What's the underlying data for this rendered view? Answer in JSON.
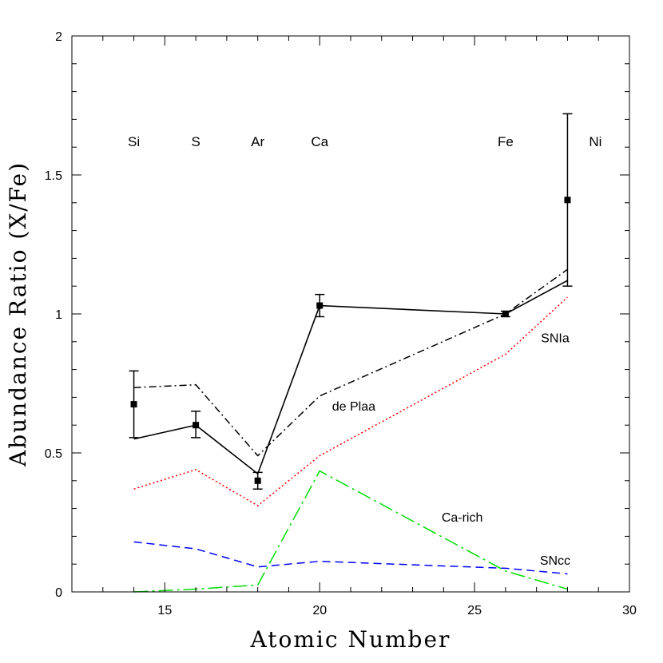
{
  "chart_data": {
    "type": "line",
    "xlabel": "Atomic Number",
    "ylabel": "Abundance Ratio (X/Fe)",
    "xlim": [
      12,
      30
    ],
    "ylim": [
      0,
      2
    ],
    "x_ticks": [
      15,
      20,
      25,
      30
    ],
    "y_ticks": [
      0,
      0.5,
      1,
      1.5,
      2
    ],
    "y_tick_labels": [
      "0",
      "0.5",
      "1",
      "1.5",
      "2"
    ],
    "x_minor_step": 1,
    "y_minor_step": 0.1,
    "grid": false,
    "element_labels": [
      {
        "text": "Si",
        "x": 14
      },
      {
        "text": "S",
        "x": 16
      },
      {
        "text": "Ar",
        "x": 18
      },
      {
        "text": "Ca",
        "x": 20
      },
      {
        "text": "Fe",
        "x": 26
      },
      {
        "text": "Ni",
        "x": 28.9
      }
    ],
    "element_label_y": 1.62,
    "observed": {
      "x": [
        14,
        16,
        18,
        20,
        26,
        28
      ],
      "y": [
        0.675,
        0.6,
        0.4,
        1.03,
        1.0,
        1.41
      ],
      "yerr_low": [
        0.555,
        0.555,
        0.37,
        0.99,
        0.99,
        1.1
      ],
      "yerr_high": [
        0.795,
        0.65,
        0.43,
        1.07,
        1.01,
        1.72
      ]
    },
    "series": [
      {
        "name": "",
        "style": "solid",
        "color": "#000000",
        "x": [
          14,
          16,
          18,
          20,
          26,
          28
        ],
        "y": [
          0.55,
          0.6,
          0.425,
          1.03,
          1.0,
          1.12
        ]
      },
      {
        "name": "de Plaa",
        "style": "dashdot",
        "color": "#000000",
        "x": [
          14,
          16,
          18,
          20,
          26,
          28
        ],
        "y": [
          0.735,
          0.745,
          0.49,
          0.705,
          1.0,
          1.16
        ]
      },
      {
        "name": "SNIa",
        "style": "dotted",
        "color": "#ff0000",
        "x": [
          14,
          16,
          18,
          20,
          26,
          28
        ],
        "y": [
          0.37,
          0.44,
          0.31,
          0.49,
          0.855,
          1.06
        ]
      },
      {
        "name": "Ca-rich",
        "style": "longdashdot",
        "color": "#00dd00",
        "x": [
          14,
          16,
          18,
          20,
          26,
          28
        ],
        "y": [
          0.0,
          0.01,
          0.025,
          0.435,
          0.075,
          0.01
        ]
      },
      {
        "name": "SNcc",
        "style": "dashed",
        "color": "#0000ff",
        "x": [
          14,
          16,
          18,
          20,
          26,
          28
        ],
        "y": [
          0.18,
          0.155,
          0.09,
          0.11,
          0.085,
          0.065
        ]
      }
    ],
    "annotations": [
      {
        "text": "SNIa",
        "x": 27.6,
        "y": 0.915
      },
      {
        "text": "de Plaa",
        "x": 21.1,
        "y": 0.67
      },
      {
        "text": "Ca-rich",
        "x": 24.6,
        "y": 0.27
      },
      {
        "text": "SNcc",
        "x": 27.6,
        "y": 0.115
      }
    ]
  }
}
